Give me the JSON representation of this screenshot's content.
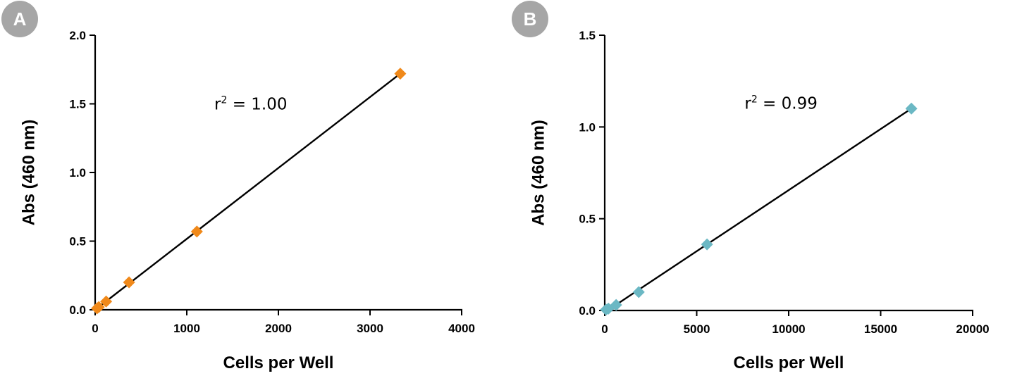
{
  "chart_data": [
    {
      "panel_label": "A",
      "type": "scatter",
      "xlabel": "Cells per Well",
      "ylabel": "Abs (460 nm)",
      "xlim": [
        0,
        4000
      ],
      "ylim": [
        0,
        2.0
      ],
      "x_ticks": [
        0,
        1000,
        2000,
        3000,
        4000
      ],
      "x_tick_labels": [
        "0",
        "1000",
        "2000",
        "3000",
        "4000"
      ],
      "y_ticks": [
        0,
        0.5,
        1.0,
        1.5,
        2.0
      ],
      "y_tick_labels": [
        "0.0",
        "0.5",
        "1.0",
        "1.5",
        "2.0"
      ],
      "grid": false,
      "marker": "diamond",
      "color": "#F0891A",
      "points": [
        {
          "x": 20,
          "y": 0.01
        },
        {
          "x": 40,
          "y": 0.02
        },
        {
          "x": 120,
          "y": 0.06
        },
        {
          "x": 370,
          "y": 0.2
        },
        {
          "x": 1110,
          "y": 0.57
        },
        {
          "x": 3330,
          "y": 1.72
        }
      ],
      "fit_line": {
        "x": [
          0,
          3330
        ],
        "y": [
          0.0,
          1.72
        ]
      },
      "annotation": {
        "base": "r",
        "sup": "2",
        "rest": " = 1.00",
        "x": 1300,
        "y": 1.5
      }
    },
    {
      "panel_label": "B",
      "type": "scatter",
      "xlabel": "Cells per Well",
      "ylabel": "Abs (460 nm)",
      "xlim": [
        0,
        20000
      ],
      "ylim": [
        0,
        1.5
      ],
      "x_ticks": [
        0,
        5000,
        10000,
        15000,
        20000
      ],
      "x_tick_labels": [
        "0",
        "5000",
        "10000",
        "15000",
        "20000"
      ],
      "y_ticks": [
        0,
        0.5,
        1.0,
        1.5
      ],
      "y_tick_labels": [
        "0.0",
        "0.5",
        "1.0",
        "1.5"
      ],
      "grid": false,
      "marker": "diamond",
      "color": "#6BB8C4",
      "points": [
        {
          "x": 70,
          "y": 0.005
        },
        {
          "x": 200,
          "y": 0.01
        },
        {
          "x": 620,
          "y": 0.03
        },
        {
          "x": 1850,
          "y": 0.1
        },
        {
          "x": 5560,
          "y": 0.36
        },
        {
          "x": 16670,
          "y": 1.1
        }
      ],
      "fit_line": {
        "x": [
          0,
          16670
        ],
        "y": [
          -0.01,
          1.1
        ]
      },
      "annotation": {
        "base": "r",
        "sup": "2",
        "rest": " = 0.99",
        "x": 7600,
        "y": 1.13
      }
    }
  ],
  "colors": {
    "badge": "#A6A6A6",
    "axis": "#000000",
    "fit_line": "#000000"
  }
}
